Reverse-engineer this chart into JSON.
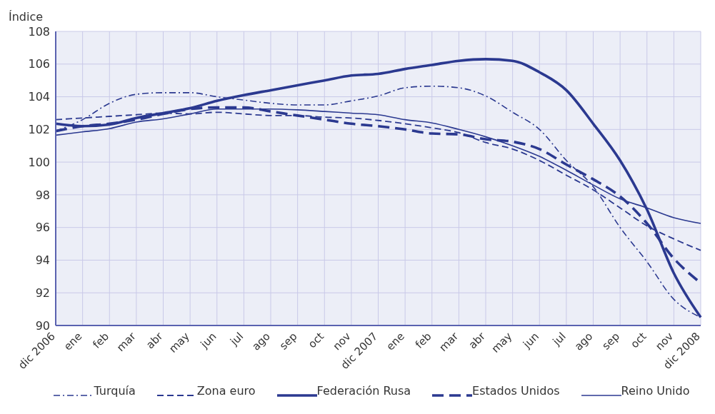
{
  "chart_data": {
    "type": "line",
    "ylabel": "Índice",
    "categories": [
      "dic 2006",
      "ene",
      "feb",
      "mar",
      "abr",
      "may",
      "jun",
      "jul",
      "ago",
      "sep",
      "oct",
      "nov",
      "dic 2007",
      "ene",
      "feb",
      "mar",
      "abr",
      "may",
      "jun",
      "jul",
      "ago",
      "sep",
      "oct",
      "nov",
      "dic 2008"
    ],
    "series": [
      {
        "name": "Turquía",
        "color": "#2b3990",
        "line_style": "dashdot",
        "values": [
          101.9,
          102.6,
          103.6,
          104.15,
          104.25,
          104.25,
          104.0,
          103.8,
          103.6,
          103.5,
          103.5,
          103.75,
          104.05,
          104.55,
          104.65,
          104.55,
          104.05,
          103.05,
          102.0,
          100.1,
          98.5,
          96.0,
          93.9,
          91.6,
          90.5
        ]
      },
      {
        "name": "Zona euro",
        "color": "#2b3990",
        "line_style": "dashed",
        "values": [
          102.6,
          102.7,
          102.8,
          102.9,
          103.0,
          102.95,
          103.05,
          102.95,
          102.85,
          102.85,
          102.75,
          102.7,
          102.55,
          102.35,
          102.1,
          101.8,
          101.2,
          100.8,
          100.1,
          99.2,
          98.3,
          97.2,
          96.1,
          95.3,
          94.6
        ]
      },
      {
        "name": "Federación Rusa",
        "color": "#2b3990",
        "line_style": "solid",
        "values": [
          102.35,
          102.2,
          102.3,
          102.7,
          103.0,
          103.3,
          103.75,
          104.1,
          104.4,
          104.7,
          105.0,
          105.3,
          105.4,
          105.7,
          105.95,
          106.2,
          106.3,
          106.2,
          105.5,
          104.4,
          102.35,
          100.1,
          97.1,
          93.2,
          90.5
        ]
      },
      {
        "name": "Estados Unidos",
        "color": "#2b3990",
        "line_style": "dashed",
        "values": [
          101.9,
          102.2,
          102.35,
          102.6,
          102.95,
          103.25,
          103.35,
          103.35,
          103.1,
          102.85,
          102.6,
          102.35,
          102.2,
          102.0,
          101.75,
          101.7,
          101.4,
          101.25,
          100.8,
          99.85,
          98.95,
          97.9,
          96.25,
          94.1,
          92.6
        ]
      },
      {
        "name": "Reino Unido",
        "color": "#2b3990",
        "line_style": "solid",
        "values": [
          101.65,
          101.85,
          102.05,
          102.45,
          102.65,
          102.95,
          103.25,
          103.25,
          103.25,
          103.2,
          103.1,
          103.0,
          102.9,
          102.6,
          102.4,
          102.0,
          101.55,
          101.0,
          100.35,
          99.5,
          98.6,
          97.75,
          97.2,
          96.6,
          96.25
        ]
      }
    ],
    "ylim": [
      90,
      108
    ],
    "yticks": [
      90,
      92,
      94,
      96,
      98,
      100,
      102,
      104,
      106,
      108
    ],
    "grid": true,
    "legend": "bottom"
  }
}
